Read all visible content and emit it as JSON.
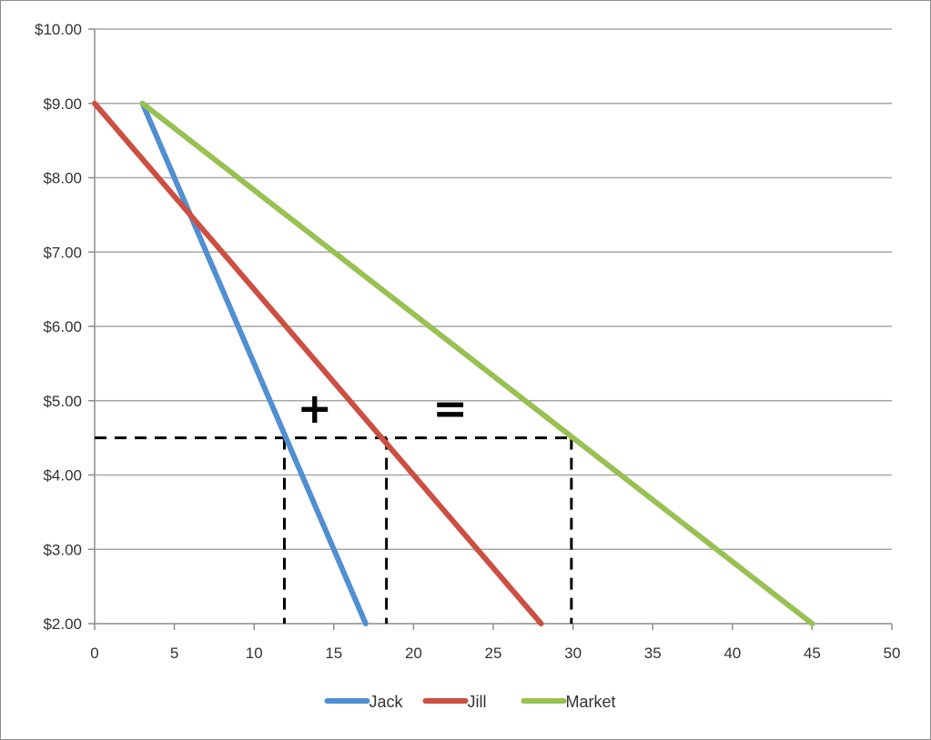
{
  "chart_data": {
    "type": "line",
    "title": "",
    "xlabel": "",
    "ylabel": "",
    "xlim": [
      0,
      50
    ],
    "ylim": [
      2,
      10
    ],
    "x_ticks": [
      0,
      5,
      10,
      15,
      20,
      25,
      30,
      35,
      40,
      45,
      50
    ],
    "x_tick_labels": [
      "0",
      "5",
      "10",
      "15",
      "20",
      "25",
      "30",
      "35",
      "40",
      "45",
      "50"
    ],
    "y_ticks": [
      2,
      3,
      4,
      5,
      6,
      7,
      8,
      9,
      10
    ],
    "y_tick_labels": [
      "$2.00",
      "$3.00",
      "$4.00",
      "$5.00",
      "$6.00",
      "$7.00",
      "$8.00",
      "$9.00",
      "$10.00"
    ],
    "grid": "horizontal",
    "legend_position": "bottom",
    "series": [
      {
        "name": "Jack",
        "color": "#4f8fd2",
        "points": [
          [
            3,
            9
          ],
          [
            17,
            2
          ]
        ]
      },
      {
        "name": "Jill",
        "color": "#cc4f42",
        "points": [
          [
            0,
            9
          ],
          [
            28,
            2
          ]
        ]
      },
      {
        "name": "Market",
        "color": "#98c152",
        "points": [
          [
            3,
            9
          ],
          [
            45,
            2
          ]
        ]
      }
    ],
    "reference_lines": {
      "price": 4.5,
      "quantities": [
        11.9,
        18.3,
        29.9
      ],
      "style": "dashed",
      "color": "#000000"
    },
    "annotations": [
      {
        "text": "+",
        "x": 13.8,
        "y": 4.9
      },
      {
        "text": "=",
        "x": 22.3,
        "y": 4.9
      }
    ]
  }
}
